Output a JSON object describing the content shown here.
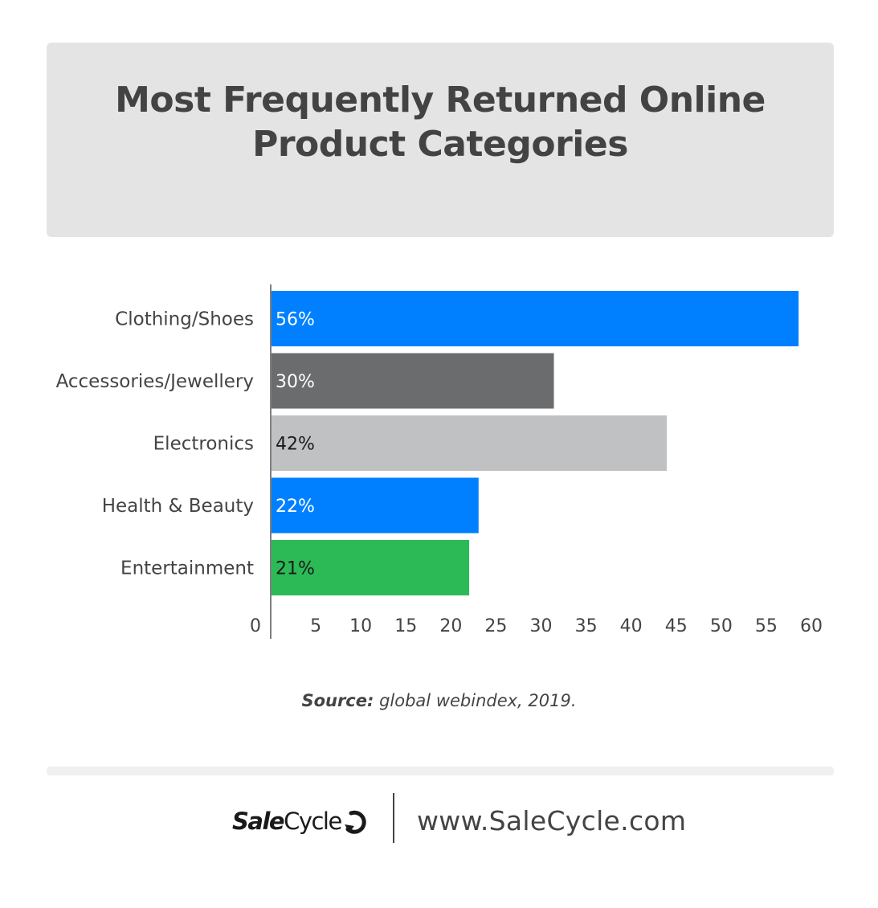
{
  "chart_data": {
    "type": "bar",
    "orientation": "horizontal",
    "title_lines": [
      "Most Frequently Returned Online",
      "Product Categories"
    ],
    "categories": [
      "Clothing/Shoes",
      "Accessories/Jewellery",
      "Electronics",
      "Health & Beauty",
      "Entertainment"
    ],
    "values": [
      56,
      30,
      42,
      22,
      21
    ],
    "data_labels": [
      "56%",
      "30%",
      "42%",
      "22%",
      "21%"
    ],
    "bar_colors": [
      "#0080ff",
      "#6a6c6e",
      "#c0c1c3",
      "#0080ff",
      "#2cba57"
    ],
    "label_colors": [
      "#ffffff",
      "#ffffff",
      "#1a1a1a",
      "#ffffff",
      "#1a1a1a"
    ],
    "x_ticks": [
      0,
      5,
      10,
      15,
      20,
      25,
      30,
      35,
      40,
      45,
      50,
      55,
      60
    ],
    "xlim": [
      0,
      60
    ],
    "grid": false,
    "legend": "none"
  },
  "source": {
    "label": "Source:",
    "text": "global webindex, 2019."
  },
  "footer": {
    "logo_sale": "Sale",
    "logo_cycle": "Cycle",
    "url": "www.SaleCycle.com"
  }
}
